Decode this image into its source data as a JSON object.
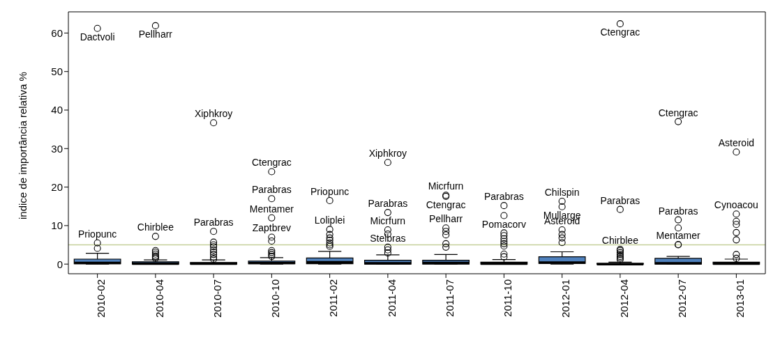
{
  "chart_data": {
    "type": "box",
    "ylabel": "indice de importância relativa %",
    "categories": [
      "2010-02",
      "2010-04",
      "2010-07",
      "2010-10",
      "2011-02",
      "2011-04",
      "2011-07",
      "2011-10",
      "2012-01",
      "2012-04",
      "2012-07",
      "2013-01"
    ],
    "color": "#4f81bd",
    "boxes": [
      {
        "low": 0,
        "q1": 0.1,
        "median": 0.3,
        "q3": 1.3,
        "high": 2.8
      },
      {
        "low": 0,
        "q1": 0,
        "median": 0.1,
        "q3": 0.6,
        "high": 1.1
      },
      {
        "low": 0,
        "q1": 0,
        "median": 0.1,
        "q3": 0.4,
        "high": 1.1
      },
      {
        "low": 0,
        "q1": 0.1,
        "median": 0.3,
        "q3": 0.8,
        "high": 1.7
      },
      {
        "low": 0,
        "q1": 0.1,
        "median": 0.5,
        "q3": 1.6,
        "high": 3.3
      },
      {
        "low": 0,
        "q1": 0,
        "median": 0.2,
        "q3": 1.0,
        "high": 2.4
      },
      {
        "low": 0,
        "q1": 0,
        "median": 0.3,
        "q3": 1.0,
        "high": 2.5
      },
      {
        "low": 0,
        "q1": 0,
        "median": 0.1,
        "q3": 0.5,
        "high": 1.2
      },
      {
        "low": 0,
        "q1": 0.2,
        "median": 0.4,
        "q3": 1.9,
        "high": 3.2
      },
      {
        "low": 0,
        "q1": 0,
        "median": 0,
        "q3": 0.2,
        "high": 0.5
      },
      {
        "low": 0,
        "q1": 0,
        "median": 0.2,
        "q3": 1.5,
        "high": 2.0
      },
      {
        "low": 0,
        "q1": 0,
        "median": 0.1,
        "q3": 0.5,
        "high": 1.3
      }
    ],
    "series": [
      {
        "type": "scatter",
        "marker": "circle",
        "color": "#000000",
        "values": [
          4.1,
          1.5,
          1.3,
          2.0,
          4.6,
          2.9,
          4.4,
          1.9,
          5.6,
          null,
          5.0,
          1.5
        ]
      },
      {
        "type": "scatter",
        "marker": "circle",
        "color": "#000000",
        "values": [
          5.5,
          1.8,
          1.8,
          2.5,
          5.0,
          3.7,
          5.3,
          2.6,
          6.8,
          1.2,
          5.1,
          2.5
        ]
      },
      {
        "type": "scatter",
        "marker": "circle",
        "color": "#000000",
        "values": [
          61.2,
          2.1,
          2.5,
          3.0,
          5.5,
          4.4,
          7.6,
          4.7,
          7.7,
          1.6,
          9.4,
          6.3
        ]
      },
      {
        "type": "scatter",
        "marker": "circle",
        "color": "#000000",
        "values": [
          null,
          2.6,
          3.1,
          3.5,
          6.2,
          7.8,
          8.5,
          5.3,
          8.9,
          2.0,
          11.5,
          8.2
        ]
      },
      {
        "type": "scatter",
        "marker": "circle",
        "color": "#000000",
        "values": [
          null,
          3.1,
          3.7,
          6.0,
          6.8,
          8.9,
          9.4,
          5.9,
          14.9,
          2.5,
          37,
          10.3
        ]
      },
      {
        "type": "scatter",
        "marker": "circle",
        "color": "#000000",
        "values": [
          null,
          3.5,
          4.5,
          7.0,
          7.7,
          13.4,
          17.6,
          6.6,
          16.3,
          3.0,
          null,
          11.1
        ]
      },
      {
        "type": "scatter",
        "marker": "circle",
        "color": "#000000",
        "values": [
          null,
          7.2,
          5.0,
          12,
          9.0,
          26.4,
          17.9,
          7.4,
          null,
          3.5,
          null,
          13.0
        ]
      },
      {
        "type": "scatter",
        "marker": "circle",
        "color": "#000000",
        "values": [
          null,
          61.9,
          5.7,
          17,
          16.5,
          null,
          null,
          8.1,
          null,
          3.8,
          null,
          29.1
        ]
      },
      {
        "type": "scatter",
        "marker": "circle",
        "color": "#000000",
        "values": [
          null,
          null,
          8.5,
          24,
          null,
          null,
          null,
          12.6,
          null,
          14.2,
          null,
          null
        ]
      },
      {
        "type": "scatter",
        "marker": "circle",
        "color": "#000000",
        "values": [
          null,
          null,
          36.7,
          null,
          null,
          null,
          null,
          15.2,
          null,
          62.4,
          null,
          null
        ]
      }
    ],
    "ylim": [
      -2.5,
      65.5
    ],
    "yticks": [
      0,
      10,
      20,
      30,
      40,
      50,
      60
    ],
    "ref_lines": [
      {
        "axis": "y",
        "value": 5,
        "color": "#c5d09a"
      }
    ],
    "annotations": [
      {
        "text": "Priopunc",
        "x": "2010-02",
        "y": 5.5
      },
      {
        "text": "Dactvoli",
        "x": "2010-02",
        "y": 61.2
      },
      {
        "text": "Chirblee",
        "x": "2010-04",
        "y": 7.2
      },
      {
        "text": "Pellharr",
        "x": "2010-04",
        "y": 61.9
      },
      {
        "text": "Parabras",
        "x": "2010-07",
        "y": 8.5
      },
      {
        "text": "Xiphkroy",
        "x": "2010-07",
        "y": 36.7
      },
      {
        "text": "Ctengrac",
        "x": "2010-10",
        "y": 24
      },
      {
        "text": "Parabras",
        "x": "2010-10",
        "y": 17
      },
      {
        "text": "Mentamer",
        "x": "2010-10",
        "y": 12
      },
      {
        "text": "Zaptbrev",
        "x": "2010-10",
        "y": 7.0
      },
      {
        "text": "Priopunc",
        "x": "2011-02",
        "y": 16.5
      },
      {
        "text": "Loliplei",
        "x": "2011-02",
        "y": 9.0
      },
      {
        "text": "Xiphkroy",
        "x": "2011-04",
        "y": 26.4
      },
      {
        "text": "Parabras",
        "x": "2011-04",
        "y": 13.4
      },
      {
        "text": "Micrfurn",
        "x": "2011-04",
        "y": 8.9
      },
      {
        "text": "Stelbras",
        "x": "2011-04",
        "y": 4.4
      },
      {
        "text": "Micrfurn",
        "x": "2011-07",
        "y": 17.9
      },
      {
        "text": "Ctengrac",
        "x": "2011-07",
        "y": 17.6
      },
      {
        "text": "Pellharr",
        "x": "2011-07",
        "y": 9.4
      },
      {
        "text": "Parabras",
        "x": "2011-10",
        "y": 15.2
      },
      {
        "text": "Pomacorv",
        "x": "2011-10",
        "y": 12.6
      },
      {
        "text": "Chilspin",
        "x": "2012-01",
        "y": 16.3
      },
      {
        "text": "Mullarge",
        "x": "2012-01",
        "y": 14.9
      },
      {
        "text": "Asteroid",
        "x": "2012-01",
        "y": 8.9
      },
      {
        "text": "Ctengrac",
        "x": "2012-04",
        "y": 62.4
      },
      {
        "text": "Parabras",
        "x": "2012-04",
        "y": 14.2
      },
      {
        "text": "Chirblee",
        "x": "2012-04",
        "y": 3.8
      },
      {
        "text": "Ctengrac",
        "x": "2012-07",
        "y": 37
      },
      {
        "text": "Parabras",
        "x": "2012-07",
        "y": 11.5
      },
      {
        "text": "Mentamer",
        "x": "2012-07",
        "y": 5.1
      },
      {
        "text": "Asteroid",
        "x": "2013-01",
        "y": 29.1
      },
      {
        "text": "Cynoacou",
        "x": "2013-01",
        "y": 13.0
      }
    ]
  }
}
